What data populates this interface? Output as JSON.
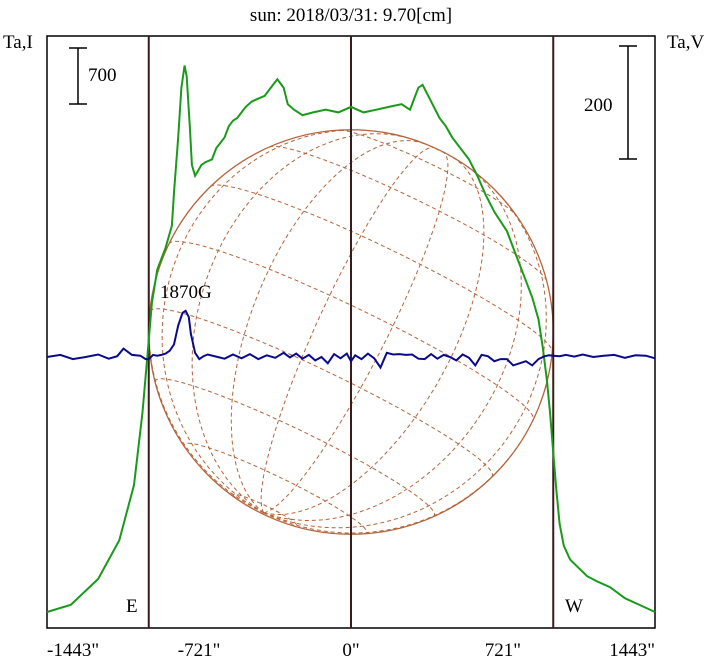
{
  "chart_data": {
    "type": "line",
    "title": "sun: 2018/03/31: 9.70[cm]",
    "ylabel_left": "Ta,I",
    "ylabel_right": "Ta,V",
    "scale_left_label": "700",
    "scale_right_label": "200",
    "xlim": [
      -1443,
      1443
    ],
    "x_ticks": [
      {
        "value": -1443,
        "label": "-1443\""
      },
      {
        "value": -721,
        "label": "-721\""
      },
      {
        "value": 0,
        "label": "0\""
      },
      {
        "value": 721,
        "label": "721\""
      },
      {
        "value": 1443,
        "label": "1443\""
      }
    ],
    "limb_left_label": "E",
    "limb_right_label": "W",
    "limb_positions": [
      -960,
      960
    ],
    "annotation": {
      "text": "1870G",
      "x": -765
    },
    "colors": {
      "intensity": "#1a9a1a",
      "polarization": "#0a0a8c",
      "disk": "#b5643a",
      "title": "#1a1a80",
      "lines": "#3a1a1a"
    },
    "series": [
      {
        "name": "I",
        "color": "#1a9a1a",
        "x": [
          -1443,
          -1330,
          -1200,
          -1100,
          -1030,
          -990,
          -965,
          -945,
          -920,
          -880,
          -850,
          -840,
          -820,
          -805,
          -790,
          -780,
          -765,
          -755,
          -740,
          -725,
          -710,
          -690,
          -660,
          -640,
          -620,
          -600,
          -580,
          -560,
          -540,
          -520,
          -500,
          -470,
          -440,
          -410,
          -380,
          -350,
          -320,
          -300,
          -270,
          -230,
          -180,
          -120,
          -60,
          0,
          60,
          120,
          180,
          240,
          280,
          300,
          320,
          340,
          360,
          380,
          420,
          450,
          480,
          520,
          560,
          600,
          640,
          680,
          740,
          780,
          820,
          860,
          890,
          910,
          930,
          945,
          960,
          975,
          990,
          1010,
          1040,
          1080,
          1120,
          1170,
          1230,
          1300,
          1443
        ],
        "y": [
          0.0,
          0.013,
          0.06,
          0.13,
          0.23,
          0.36,
          0.47,
          0.56,
          0.62,
          0.66,
          0.7,
          0.76,
          0.86,
          0.95,
          0.99,
          0.97,
          0.88,
          0.81,
          0.79,
          0.8,
          0.81,
          0.815,
          0.82,
          0.84,
          0.85,
          0.86,
          0.88,
          0.89,
          0.895,
          0.905,
          0.915,
          0.925,
          0.93,
          0.935,
          0.95,
          0.965,
          0.95,
          0.92,
          0.91,
          0.9,
          0.905,
          0.91,
          0.905,
          0.915,
          0.905,
          0.91,
          0.915,
          0.92,
          0.91,
          0.93,
          0.95,
          0.955,
          0.94,
          0.925,
          0.895,
          0.88,
          0.86,
          0.84,
          0.82,
          0.79,
          0.755,
          0.725,
          0.69,
          0.65,
          0.61,
          0.57,
          0.53,
          0.48,
          0.42,
          0.36,
          0.29,
          0.22,
          0.16,
          0.12,
          0.095,
          0.08,
          0.065,
          0.055,
          0.045,
          0.025,
          0.0
        ]
      },
      {
        "name": "V",
        "color": "#0a0a8c",
        "x": [
          -1443,
          -1380,
          -1320,
          -1260,
          -1200,
          -1150,
          -1110,
          -1080,
          -1040,
          -1000,
          -975,
          -960,
          -940,
          -920,
          -900,
          -880,
          -860,
          -840,
          -820,
          -800,
          -785,
          -770,
          -760,
          -740,
          -720,
          -700,
          -680,
          -640,
          -600,
          -560,
          -520,
          -480,
          -440,
          -400,
          -360,
          -320,
          -290,
          -260,
          -230,
          -200,
          -170,
          -140,
          -110,
          -80,
          -50,
          -20,
          0,
          20,
          50,
          80,
          110,
          140,
          170,
          200,
          230,
          260,
          290,
          320,
          350,
          380,
          410,
          440,
          470,
          500,
          530,
          560,
          590,
          620,
          650,
          680,
          710,
          740,
          770,
          800,
          830,
          860,
          890,
          920,
          940,
          960,
          990,
          1020,
          1060,
          1100,
          1150,
          1200,
          1250,
          1300,
          1350,
          1400,
          1443
        ],
        "y": [
          0.0,
          0.05,
          -0.05,
          0.0,
          0.06,
          -0.04,
          0.02,
          0.2,
          0.05,
          0.03,
          -0.05,
          -0.05,
          0.05,
          0.03,
          0.05,
          0.08,
          0.15,
          0.3,
          0.75,
          1.05,
          1.1,
          0.95,
          0.55,
          0.1,
          -0.05,
          0.02,
          0.06,
          0.01,
          -0.04,
          0.06,
          -0.03,
          0.07,
          -0.05,
          0.04,
          -0.02,
          0.1,
          -0.01,
          0.08,
          -0.04,
          0.05,
          -0.08,
          0.0,
          -0.15,
          0.07,
          -0.03,
          0.08,
          -0.1,
          0.04,
          -0.05,
          0.08,
          -0.03,
          -0.25,
          0.1,
          0.06,
          0.07,
          0.05,
          0.06,
          -0.04,
          -0.05,
          0.07,
          -0.04,
          0.05,
          0.0,
          -0.08,
          0.06,
          -0.02,
          -0.2,
          0.05,
          0.02,
          -0.1,
          -0.05,
          -0.05,
          -0.2,
          -0.15,
          -0.1,
          -0.2,
          -0.05,
          0.02,
          0.04,
          0.03,
          0.02,
          0.05,
          0.01,
          0.06,
          0.0,
          0.03,
          0.05,
          -0.02,
          0.04,
          0.03,
          -0.03
        ]
      }
    ]
  }
}
